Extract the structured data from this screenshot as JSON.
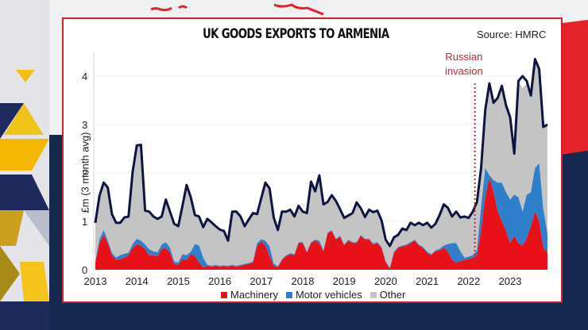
{
  "chart_data": {
    "type": "area",
    "title": "UK GOODS EXPORTS TO ARMENIA",
    "source": "Source: HMRC",
    "xlabel": "",
    "ylabel": "£m (3 month avg)",
    "ylim": [
      0,
      4.4
    ],
    "yticks": [
      0,
      1,
      2,
      3,
      4
    ],
    "xticks": [
      "2013",
      "2014",
      "2015",
      "2016",
      "2017",
      "2018",
      "2019",
      "2020",
      "2021",
      "2022",
      "2023"
    ],
    "xlim": [
      2013,
      2023.95
    ],
    "grid": "horizontal",
    "legend_position": "bottom",
    "annotation": {
      "text_line1": "Russian",
      "text_line2": "invasion",
      "x": 2022.15,
      "style": "dotted vertical line"
    },
    "x": [
      2013.0,
      2013.1,
      2013.2,
      2013.3,
      2013.4,
      2013.5,
      2013.6,
      2013.7,
      2013.8,
      2013.9,
      2014.0,
      2014.1,
      2014.2,
      2014.3,
      2014.4,
      2014.5,
      2014.6,
      2014.7,
      2014.8,
      2014.9,
      2015.0,
      2015.1,
      2015.2,
      2015.3,
      2015.4,
      2015.5,
      2015.6,
      2015.7,
      2015.8,
      2015.9,
      2016.0,
      2016.1,
      2016.2,
      2016.3,
      2016.4,
      2016.5,
      2016.6,
      2016.7,
      2016.8,
      2016.9,
      2017.0,
      2017.1,
      2017.2,
      2017.3,
      2017.4,
      2017.5,
      2017.6,
      2017.7,
      2017.8,
      2017.9,
      2018.0,
      2018.1,
      2018.2,
      2018.3,
      2018.4,
      2018.5,
      2018.6,
      2018.7,
      2018.8,
      2018.9,
      2019.0,
      2019.1,
      2019.2,
      2019.3,
      2019.4,
      2019.5,
      2019.6,
      2019.7,
      2019.8,
      2019.9,
      2020.0,
      2020.1,
      2020.2,
      2020.3,
      2020.4,
      2020.5,
      2020.6,
      2020.7,
      2020.8,
      2020.9,
      2021.0,
      2021.1,
      2021.2,
      2021.3,
      2021.4,
      2021.5,
      2021.6,
      2021.7,
      2021.8,
      2021.9,
      2022.0,
      2022.1,
      2022.2,
      2022.3,
      2022.4,
      2022.5,
      2022.6,
      2022.7,
      2022.8,
      2022.9,
      2023.0,
      2023.1,
      2023.2,
      2023.3,
      2023.4,
      2023.5,
      2023.6,
      2023.7,
      2023.8,
      2023.9
    ],
    "series": [
      {
        "name": "Machinery",
        "color": "#e8111a",
        "values": [
          0.15,
          0.55,
          0.72,
          0.55,
          0.3,
          0.2,
          0.22,
          0.25,
          0.3,
          0.45,
          0.52,
          0.5,
          0.42,
          0.3,
          0.3,
          0.28,
          0.42,
          0.45,
          0.35,
          0.12,
          0.1,
          0.22,
          0.2,
          0.32,
          0.28,
          0.15,
          0.05,
          0.08,
          0.06,
          0.08,
          0.06,
          0.07,
          0.06,
          0.08,
          0.06,
          0.08,
          0.1,
          0.12,
          0.15,
          0.5,
          0.58,
          0.5,
          0.28,
          0.08,
          0.05,
          0.2,
          0.28,
          0.32,
          0.3,
          0.55,
          0.55,
          0.35,
          0.55,
          0.6,
          0.55,
          0.38,
          0.75,
          0.8,
          0.62,
          0.68,
          0.5,
          0.6,
          0.55,
          0.55,
          0.7,
          0.62,
          0.62,
          0.52,
          0.55,
          0.45,
          0.15,
          0.02,
          0.35,
          0.45,
          0.48,
          0.5,
          0.55,
          0.6,
          0.5,
          0.45,
          0.35,
          0.3,
          0.38,
          0.4,
          0.45,
          0.38,
          0.2,
          0.15,
          0.18,
          0.2,
          0.22,
          0.25,
          0.3,
          0.8,
          1.5,
          1.9,
          1.6,
          1.2,
          1.0,
          0.8,
          0.55,
          0.7,
          0.55,
          0.5,
          0.65,
          0.9,
          1.2,
          1.0,
          0.45,
          0.35
        ]
      },
      {
        "name": "Motor vehicles",
        "color": "#2f7fcb",
        "values": [
          0.02,
          0.08,
          0.1,
          0.05,
          0.05,
          0.05,
          0.08,
          0.08,
          0.05,
          0.08,
          0.12,
          0.1,
          0.1,
          0.12,
          0.08,
          0.08,
          0.1,
          0.12,
          0.1,
          0.05,
          0.05,
          0.1,
          0.1,
          0.05,
          0.25,
          0.35,
          0.2,
          0.02,
          0.02,
          0.02,
          0.02,
          0.02,
          0.02,
          0.02,
          0.02,
          0.02,
          0.02,
          0.02,
          0.02,
          0.05,
          0.05,
          0.1,
          0.2,
          0.05,
          0.02,
          0.02,
          0.02,
          0.02,
          0.02,
          0.02,
          0.02,
          0.02,
          0.02,
          0.02,
          0.05,
          0.02,
          0.02,
          0.02,
          0.02,
          0.02,
          0.02,
          0.02,
          0.02,
          0.02,
          0.02,
          0.02,
          0.02,
          0.02,
          0.02,
          0.02,
          0.02,
          0.02,
          0.02,
          0.02,
          0.02,
          0.02,
          0.02,
          0.02,
          0.02,
          0.02,
          0.02,
          0.02,
          0.02,
          0.03,
          0.05,
          0.15,
          0.35,
          0.4,
          0.2,
          0.05,
          0.05,
          0.05,
          0.1,
          0.5,
          0.6,
          0.05,
          0.25,
          0.6,
          0.8,
          0.8,
          0.9,
          0.85,
          0.95,
          0.7,
          0.9,
          0.7,
          0.9,
          1.2,
          0.8,
          0.4
        ]
      },
      {
        "name": "Other",
        "color": "#c4c4c4",
        "values": [
          0.8,
          0.9,
          0.98,
          1.1,
          0.8,
          0.72,
          0.67,
          0.75,
          0.75,
          1.5,
          1.93,
          1.98,
          0.7,
          0.78,
          0.72,
          0.69,
          0.58,
          0.88,
          0.75,
          0.78,
          0.75,
          1.0,
          1.45,
          1.13,
          0.6,
          0.6,
          0.63,
          0.95,
          0.9,
          0.8,
          0.75,
          0.71,
          0.52,
          1.1,
          1.12,
          1.0,
          0.78,
          0.9,
          1.0,
          0.6,
          0.85,
          1.2,
          1.2,
          0.95,
          0.75,
          0.98,
          0.9,
          0.9,
          0.78,
          0.75,
          0.63,
          0.8,
          1.25,
          1.0,
          1.35,
          0.95,
          0.63,
          0.72,
          0.78,
          0.55,
          0.55,
          0.5,
          0.6,
          0.82,
          0.55,
          0.45,
          0.6,
          0.65,
          0.65,
          0.55,
          0.45,
          0.45,
          0.3,
          0.25,
          0.35,
          0.3,
          0.4,
          0.3,
          0.45,
          0.45,
          0.6,
          0.55,
          0.55,
          0.7,
          0.85,
          0.75,
          0.55,
          0.65,
          0.7,
          0.85,
          0.8,
          0.9,
          1.0,
          0.8,
          1.2,
          1.9,
          1.6,
          1.75,
          2.0,
          1.8,
          1.7,
          0.85,
          2.4,
          2.55,
          2.3,
          2.0,
          2.25,
          1.95,
          1.7,
          2.25
        ]
      }
    ],
    "total_line": {
      "name": "Total",
      "color": "#0d1440",
      "values": [
        0.97,
        1.53,
        1.8,
        1.7,
        1.15,
        0.97,
        0.97,
        1.08,
        1.1,
        2.03,
        2.57,
        2.58,
        1.22,
        1.2,
        1.1,
        1.05,
        1.1,
        1.45,
        1.2,
        0.95,
        0.9,
        1.32,
        1.75,
        1.5,
        1.13,
        1.1,
        0.88,
        1.05,
        0.98,
        0.9,
        0.83,
        0.8,
        0.6,
        1.2,
        1.2,
        1.1,
        0.9,
        1.04,
        1.17,
        1.15,
        1.48,
        1.8,
        1.68,
        1.08,
        0.82,
        1.2,
        1.2,
        1.24,
        1.1,
        1.32,
        1.2,
        1.17,
        1.82,
        1.62,
        1.95,
        1.35,
        1.4,
        1.54,
        1.42,
        1.25,
        1.07,
        1.12,
        1.17,
        1.39,
        1.27,
        1.09,
        1.24,
        1.19,
        1.22,
        1.02,
        0.62,
        0.49,
        0.67,
        0.72,
        0.85,
        0.82,
        0.97,
        0.92,
        0.97,
        0.92,
        0.97,
        0.87,
        0.95,
        1.13,
        1.35,
        1.28,
        1.1,
        1.2,
        1.08,
        1.1,
        1.07,
        1.2,
        1.4,
        2.1,
        3.3,
        3.85,
        3.45,
        3.55,
        3.8,
        3.4,
        3.15,
        2.4,
        3.9,
        4.0,
        3.9,
        3.6,
        4.35,
        4.15,
        2.95,
        3.0
      ]
    }
  },
  "legend": [
    {
      "label": "Machinery",
      "color": "#e8111a"
    },
    {
      "label": "Motor vehicles",
      "color": "#2f7fcb"
    },
    {
      "label": "Other",
      "color": "#c4c4c4"
    }
  ]
}
